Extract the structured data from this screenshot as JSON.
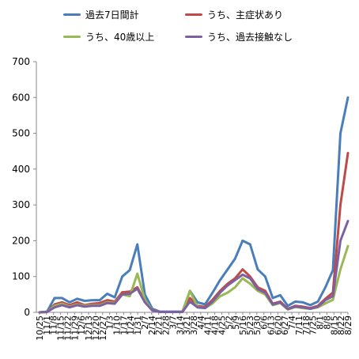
{
  "chart_data": {
    "type": "line",
    "title": "",
    "xlabel": "",
    "ylabel": "",
    "ylim": [
      0,
      700
    ],
    "yticks": [
      "0",
      "100",
      "200",
      "300",
      "400",
      "500",
      "600",
      "700"
    ],
    "grid": false,
    "legend_position": "top",
    "x_tick_labels": [
      "10/25",
      "11/1",
      "11/8",
      "11/15",
      "11/22",
      "11/29",
      "12/6",
      "12/13",
      "12/20",
      "12/27",
      "1/3",
      "1/10",
      "1/17",
      "1/24",
      "1/31",
      "2/7",
      "2/14",
      "2/21",
      "2/28",
      "3/7",
      "3/14",
      "3/21",
      "3/28",
      "4/4",
      "4/11",
      "4/18",
      "4/25",
      "5/2",
      "5/9",
      "5/16",
      "5/23",
      "5/30",
      "6/6",
      "6/13",
      "6/20",
      "6/27",
      "7/4",
      "7/11",
      "7/18",
      "7/25",
      "8/1",
      "8/8",
      "8/15",
      "8/22",
      "8/29"
    ],
    "series": [
      {
        "name": "過去7日間計",
        "color": "#4a7ebb",
        "values": [
          0,
          2,
          40,
          40,
          28,
          38,
          32,
          34,
          34,
          52,
          42,
          100,
          118,
          190,
          50,
          10,
          2,
          2,
          2,
          2,
          60,
          28,
          22,
          55,
          90,
          120,
          150,
          200,
          190,
          120,
          100,
          40,
          48,
          18,
          30,
          28,
          20,
          30,
          70,
          118,
          500,
          600
        ]
      },
      {
        "name": "うち、主症状あり",
        "color": "#be4b48",
        "values": [
          0,
          1,
          22,
          28,
          20,
          28,
          20,
          24,
          26,
          34,
          30,
          56,
          58,
          70,
          30,
          6,
          1,
          1,
          1,
          1,
          40,
          18,
          15,
          35,
          60,
          80,
          95,
          120,
          100,
          70,
          60,
          24,
          30,
          10,
          18,
          16,
          12,
          18,
          38,
          55,
          300,
          445
        ]
      },
      {
        "name": "うち、40歳以上",
        "color": "#98b954",
        "values": [
          0,
          1,
          18,
          24,
          16,
          22,
          18,
          20,
          20,
          28,
          26,
          50,
          45,
          108,
          35,
          5,
          1,
          1,
          1,
          1,
          60,
          15,
          12,
          25,
          45,
          55,
          70,
          95,
          80,
          60,
          50,
          20,
          26,
          8,
          15,
          12,
          10,
          14,
          25,
          35,
          120,
          185
        ]
      },
      {
        "name": "うち、過去接触なし",
        "color": "#7d60a0",
        "values": [
          0,
          1,
          14,
          20,
          14,
          20,
          16,
          18,
          18,
          26,
          24,
          50,
          52,
          66,
          28,
          5,
          1,
          1,
          1,
          1,
          30,
          14,
          12,
          30,
          55,
          75,
          90,
          105,
          95,
          65,
          55,
          22,
          28,
          9,
          16,
          14,
          10,
          16,
          34,
          45,
          200,
          255
        ]
      }
    ]
  }
}
